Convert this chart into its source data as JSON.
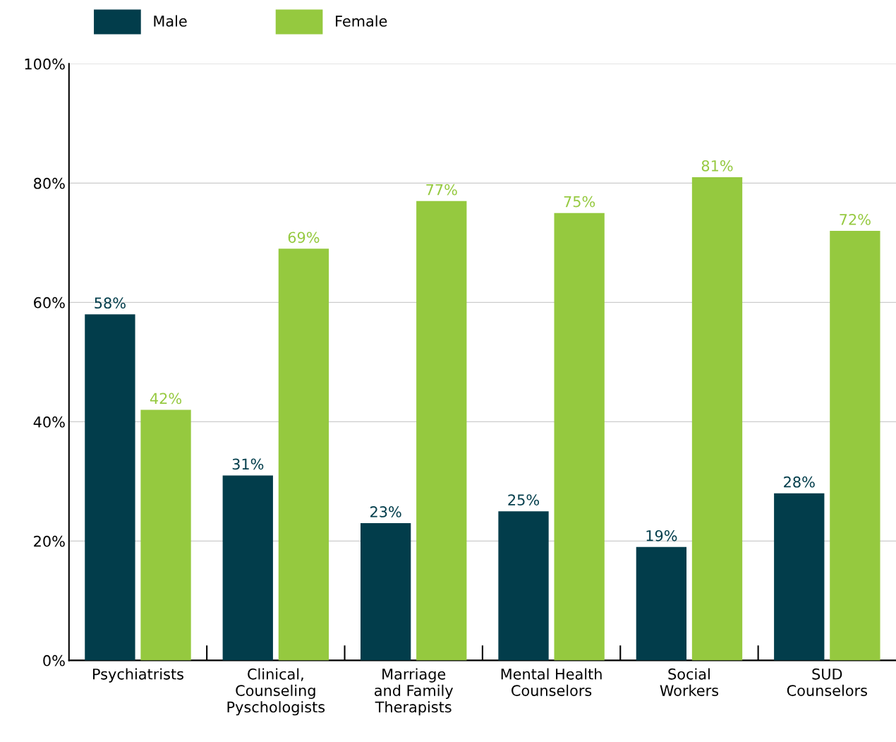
{
  "chart_data": {
    "type": "bar",
    "categories": [
      "Psychiatrists",
      "Clinical,\nCounseling\nPyschologists",
      "Marriage\nand Family\nTherapists",
      "Mental Health\nCounselors",
      "Social\nWorkers",
      "SUD\nCounselors"
    ],
    "series": [
      {
        "name": "Male",
        "color": "#023d4b",
        "values": [
          58,
          31,
          23,
          25,
          19,
          28
        ],
        "value_labels": [
          "58%",
          "31%",
          "23%",
          "25%",
          "19%",
          "28%"
        ]
      },
      {
        "name": "Female",
        "color": "#95c93f",
        "values": [
          42,
          69,
          77,
          75,
          81,
          72
        ],
        "value_labels": [
          "42%",
          "69%",
          "77%",
          "75%",
          "81%",
          "72%"
        ]
      }
    ],
    "ylim": [
      0,
      100
    ],
    "yticks": [
      {
        "value": 0,
        "label": "0%"
      },
      {
        "value": 20,
        "label": "20%"
      },
      {
        "value": 40,
        "label": "40%"
      },
      {
        "value": 60,
        "label": "60%"
      },
      {
        "value": 80,
        "label": "80%"
      },
      {
        "value": 100,
        "label": "100%"
      }
    ],
    "grid": "y",
    "legend": "top left"
  }
}
